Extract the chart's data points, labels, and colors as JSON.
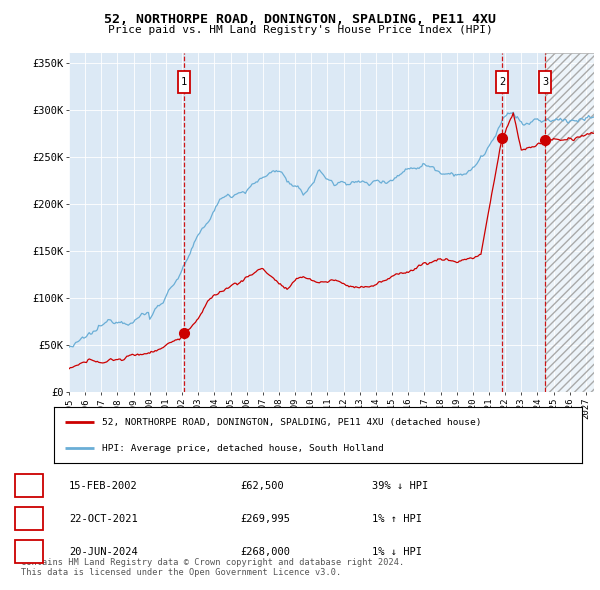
{
  "title": "52, NORTHORPE ROAD, DONINGTON, SPALDING, PE11 4XU",
  "subtitle": "Price paid vs. HM Land Registry's House Price Index (HPI)",
  "ylim": [
    0,
    360000
  ],
  "xlim_start": 1995.0,
  "xlim_end": 2027.5,
  "plot_bg_color": "#dce9f5",
  "hpi_line_color": "#6aaed6",
  "price_line_color": "#cc0000",
  "sale_marker_color": "#cc0000",
  "legend_label_red": "52, NORTHORPE ROAD, DONINGTON, SPALDING, PE11 4XU (detached house)",
  "legend_label_blue": "HPI: Average price, detached house, South Holland",
  "transactions": [
    {
      "num": 1,
      "date": "15-FEB-2002",
      "x": 2002.12,
      "price": 62500,
      "pct": "39%",
      "dir": "↓"
    },
    {
      "num": 2,
      "date": "22-OCT-2021",
      "x": 2021.81,
      "price": 269995,
      "pct": "1%",
      "dir": "↑"
    },
    {
      "num": 3,
      "date": "20-JUN-2024",
      "x": 2024.47,
      "price": 268000,
      "pct": "1%",
      "dir": "↓"
    }
  ],
  "footer": "Contains HM Land Registry data © Crown copyright and database right 2024.\nThis data is licensed under the Open Government Licence v3.0.",
  "future_hatch_start": 2024.47
}
